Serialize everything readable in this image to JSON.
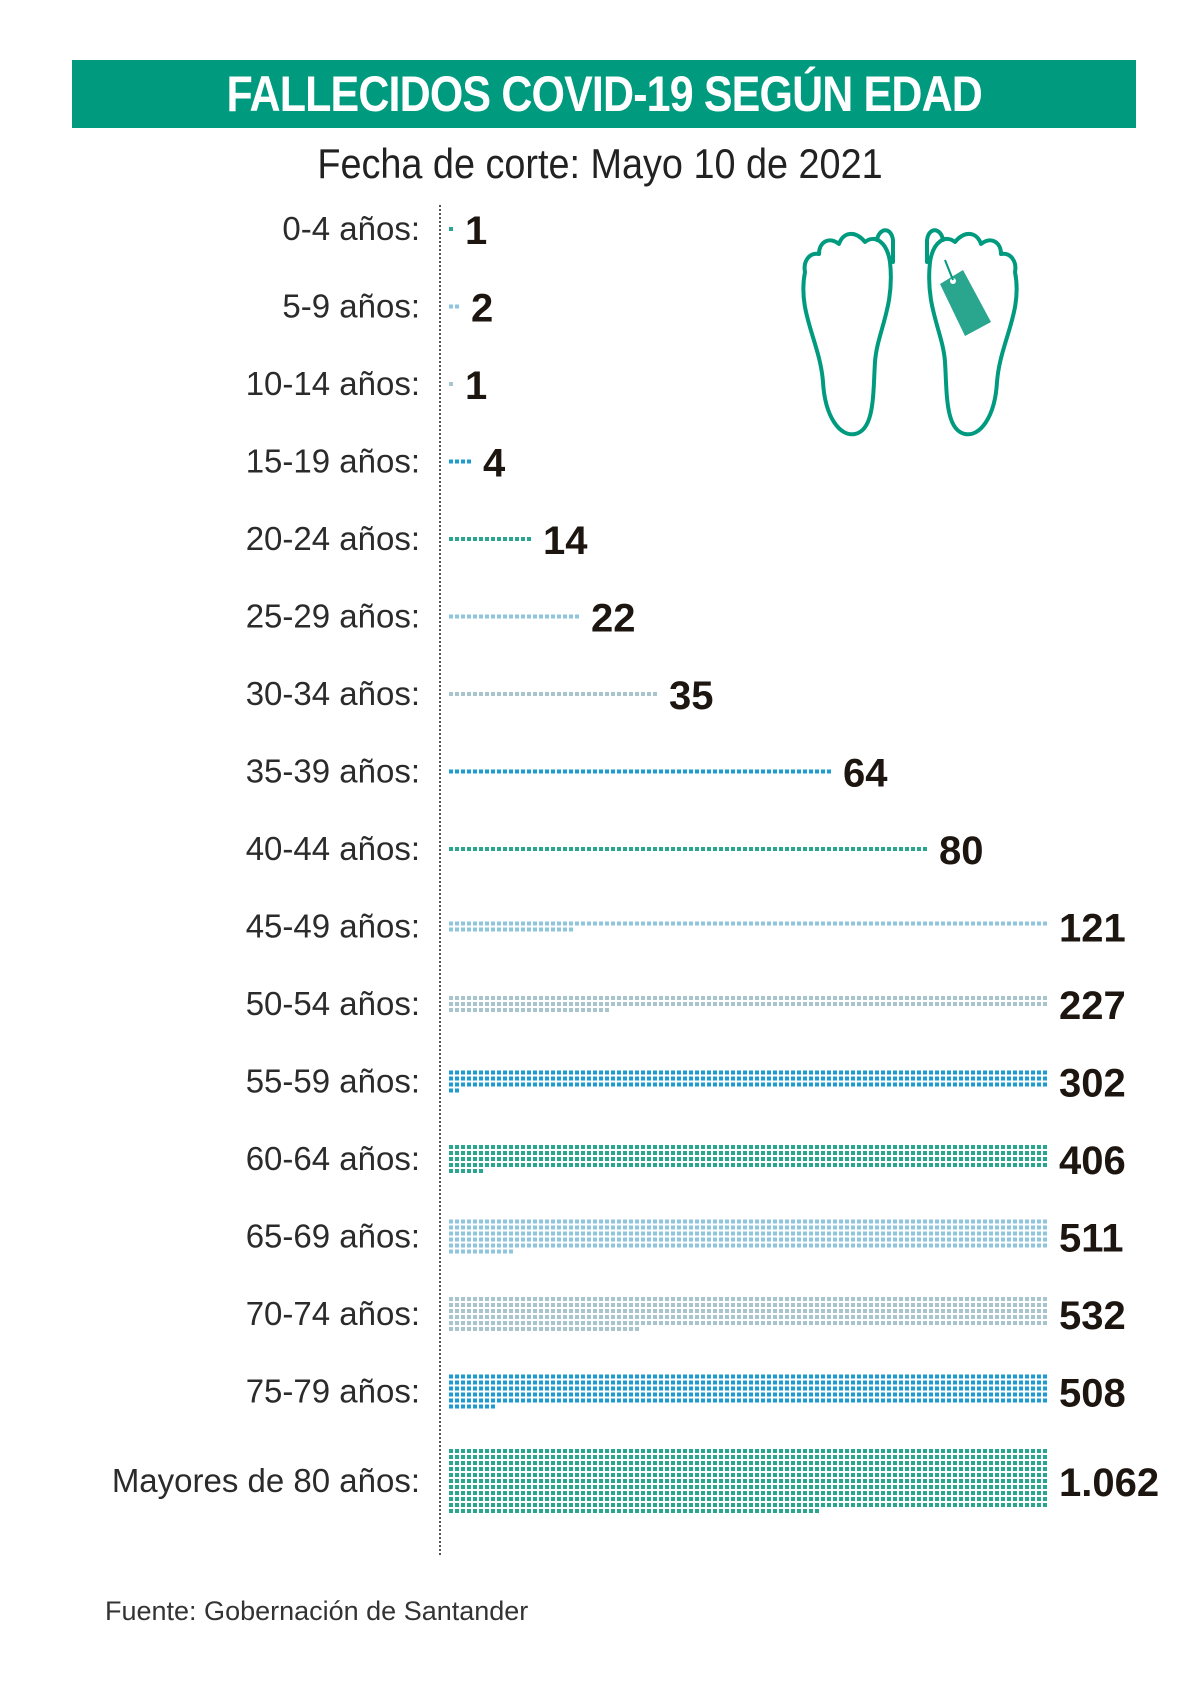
{
  "title": "FALLECIDOS COVID-19 SEGÚN EDAD",
  "subtitle": "Fecha de corte: Mayo 10 de 2021",
  "source": "Fuente: Gobernación de Santander",
  "icon": "feet-with-toe-tag-icon",
  "colors": {
    "title_bg": "#009a7f",
    "teal": "#2aa58e",
    "light_blue": "#8fc6dd",
    "grey_blue": "#a8c4cc",
    "blue": "#1e9bd0"
  },
  "chart_data": {
    "type": "bar",
    "orientation": "horizontal",
    "categories": [
      "0-4 años:",
      "5-9 años:",
      "10-14 años:",
      "15-19 años:",
      "20-24 años:",
      "25-29 años:",
      "30-34 años:",
      "35-39 años:",
      "40-44 años:",
      "45-49 años:",
      "50-54 años:",
      "55-59 años:",
      "60-64 años:",
      "65-69 años:",
      "70-74 años:",
      "75-79 años:",
      "Mayores de 80 años:"
    ],
    "values": [
      1,
      2,
      1,
      4,
      14,
      22,
      35,
      64,
      80,
      121,
      227,
      302,
      406,
      511,
      532,
      508,
      1062
    ],
    "value_labels": [
      "1",
      "2",
      "1",
      "4",
      "14",
      "22",
      "35",
      "64",
      "80",
      "121",
      "227",
      "302",
      "406",
      "511",
      "532",
      "508",
      "1.062"
    ],
    "bar_colors": [
      "#2aa58e",
      "#8fc6dd",
      "#a8c4cc",
      "#1e9bd0",
      "#2aa58e",
      "#8fc6dd",
      "#a8c4cc",
      "#1e9bd0",
      "#2aa58e",
      "#8fc6dd",
      "#a8c4cc",
      "#1e9bd0",
      "#2aa58e",
      "#8fc6dd",
      "#a8c4cc",
      "#1e9bd0",
      "#2aa58e"
    ],
    "grid": false,
    "legend": "none"
  }
}
